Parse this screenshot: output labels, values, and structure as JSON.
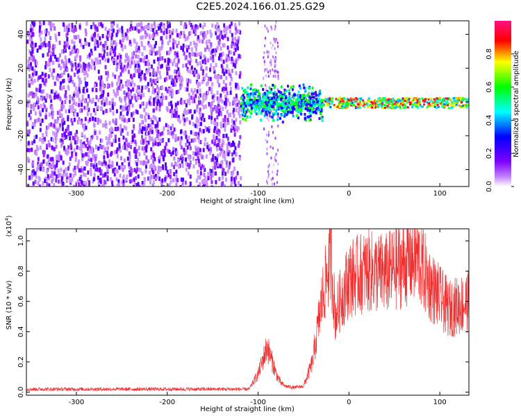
{
  "title": "C2E5.2024.166.01.25.G29",
  "chart_data": [
    {
      "type": "heatmap",
      "xlabel": "Height of straight line (km)",
      "ylabel": "Frequency (Hz)",
      "xlim": [
        -355,
        132
      ],
      "ylim": [
        -50,
        48
      ],
      "x_ticks": [
        -300,
        -200,
        -100,
        0,
        100
      ],
      "y_ticks": [
        -40,
        -20,
        0,
        20,
        40
      ],
      "colorbar": {
        "label": "Normalized spectral amplitude",
        "range": [
          0,
          1
        ],
        "ticks": [
          "0.0",
          "0.2",
          "0.4",
          "0.6",
          "0.8"
        ],
        "tick_values": [
          0.0,
          0.2,
          0.4,
          0.6,
          0.8
        ],
        "colors": [
          "#ffffff",
          "#7f00ff",
          "#0000ff",
          "#00ffff",
          "#00ff00",
          "#ffff00",
          "#ff0000",
          "#ff0080"
        ]
      },
      "regions": [
        {
          "x": [
            -355,
            -120
          ],
          "y": [
            -50,
            48
          ],
          "level": 0.15,
          "pattern": "noise"
        },
        {
          "x": [
            -95,
            -78
          ],
          "y": [
            -50,
            48
          ],
          "level": 0.08,
          "pattern": "sparse"
        },
        {
          "x": [
            -120,
            -30
          ],
          "y": [
            -12,
            12
          ],
          "level": 0.5,
          "pattern": "signal"
        },
        {
          "x": [
            -30,
            132
          ],
          "y": [
            -3,
            3
          ],
          "level": 0.85,
          "pattern": "line"
        }
      ]
    },
    {
      "type": "line",
      "xlabel": "Height of straight line (km)",
      "ylabel": "SNR (10 * v/v)",
      "y_scale_note": "(x10^4)",
      "xlim": [
        -355,
        132
      ],
      "ylim": [
        -0.02,
        1.08
      ],
      "x_ticks": [
        -300,
        -200,
        -100,
        0,
        100
      ],
      "y_ticks": [
        0.0,
        0.2,
        0.4,
        0.6,
        0.8,
        1.0
      ],
      "color": "#f03030",
      "envelope": {
        "x": [
          -355,
          -110,
          -100,
          -90,
          -80,
          -75,
          -70,
          -60,
          -50,
          -40,
          -30,
          -20,
          -15,
          -10,
          0,
          20,
          40,
          60,
          75,
          90,
          110,
          132
        ],
        "y": [
          0.02,
          0.02,
          0.12,
          0.3,
          0.12,
          0.06,
          0.04,
          0.03,
          0.04,
          0.2,
          0.6,
          0.9,
          0.5,
          0.6,
          0.75,
          0.8,
          0.78,
          0.85,
          0.9,
          0.7,
          0.55,
          0.6
        ]
      }
    }
  ]
}
